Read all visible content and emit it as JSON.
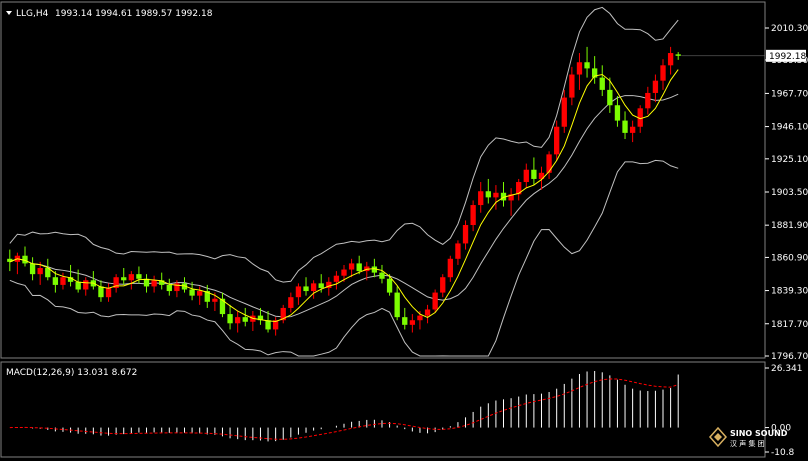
{
  "main_header": {
    "menu_icon": "triangle-down-icon",
    "symbol_tf": "LLG,H4",
    "ohlc": "1993.14 1994.61 1989.57 1992.18"
  },
  "price_axis": {
    "labels": [
      "2010.30",
      "1989.50",
      "1967.70",
      "1946.10",
      "1925.10",
      "1903.50",
      "1881.90",
      "1860.90",
      "1839.30",
      "1817.70",
      "1796.70"
    ],
    "current_price_label": "1992.18"
  },
  "macd_panel": {
    "header": "MACD(12,26,9) 13.031 8.672",
    "axis_labels": [
      "26.341",
      "0.00",
      "-10.8"
    ]
  },
  "watermark": {
    "brand": "SINO SOUND",
    "cn": "汉 声 集 团"
  },
  "colors": {
    "background": "#000000",
    "bull": "#ff0000",
    "bear": "#7cfc00",
    "bands": "#c0c0c0",
    "ma": "#ffff00",
    "signal": "#ff0000",
    "histogram": "#ffffff"
  },
  "chart_data": {
    "type": "candlestick",
    "symbol": "LLG",
    "timeframe": "H4",
    "y_range": [
      1796.7,
      2010.3
    ],
    "candles": [
      [
        1860,
        1866,
        1852,
        1858
      ],
      [
        1858,
        1864,
        1850,
        1862
      ],
      [
        1862,
        1868,
        1855,
        1857
      ],
      [
        1857,
        1861,
        1846,
        1850
      ],
      [
        1850,
        1858,
        1843,
        1854
      ],
      [
        1854,
        1860,
        1846,
        1848
      ],
      [
        1848,
        1852,
        1838,
        1843
      ],
      [
        1843,
        1851,
        1840,
        1848
      ],
      [
        1848,
        1856,
        1842,
        1845
      ],
      [
        1845,
        1853,
        1838,
        1840
      ],
      [
        1840,
        1848,
        1836,
        1846
      ],
      [
        1846,
        1852,
        1840,
        1842
      ],
      [
        1842,
        1846,
        1832,
        1835
      ],
      [
        1835,
        1844,
        1832,
        1841
      ],
      [
        1841,
        1850,
        1838,
        1848
      ],
      [
        1848,
        1854,
        1843,
        1846
      ],
      [
        1846,
        1852,
        1840,
        1850
      ],
      [
        1850,
        1855,
        1844,
        1847
      ],
      [
        1847,
        1850,
        1838,
        1842
      ],
      [
        1842,
        1849,
        1838,
        1846
      ],
      [
        1846,
        1851,
        1840,
        1843
      ],
      [
        1843,
        1847,
        1836,
        1839
      ],
      [
        1839,
        1846,
        1835,
        1844
      ],
      [
        1844,
        1848,
        1838,
        1840
      ],
      [
        1840,
        1845,
        1833,
        1836
      ],
      [
        1836,
        1842,
        1830,
        1839
      ],
      [
        1839,
        1843,
        1828,
        1832
      ],
      [
        1832,
        1838,
        1826,
        1834
      ],
      [
        1834,
        1838,
        1822,
        1824
      ],
      [
        1824,
        1830,
        1814,
        1818
      ],
      [
        1818,
        1826,
        1812,
        1822
      ],
      [
        1822,
        1828,
        1816,
        1819
      ],
      [
        1819,
        1826,
        1813,
        1823
      ],
      [
        1823,
        1828,
        1817,
        1820
      ],
      [
        1820,
        1826,
        1812,
        1814
      ],
      [
        1814,
        1822,
        1810,
        1820
      ],
      [
        1820,
        1830,
        1818,
        1828
      ],
      [
        1828,
        1838,
        1825,
        1835
      ],
      [
        1835,
        1844,
        1830,
        1842
      ],
      [
        1842,
        1848,
        1836,
        1839
      ],
      [
        1839,
        1846,
        1834,
        1844
      ],
      [
        1844,
        1850,
        1838,
        1841
      ],
      [
        1841,
        1848,
        1836,
        1845
      ],
      [
        1845,
        1852,
        1840,
        1849
      ],
      [
        1849,
        1856,
        1845,
        1853
      ],
      [
        1853,
        1860,
        1848,
        1857
      ],
      [
        1857,
        1862,
        1850,
        1852
      ],
      [
        1852,
        1858,
        1846,
        1855
      ],
      [
        1855,
        1860,
        1848,
        1851
      ],
      [
        1851,
        1856,
        1844,
        1847
      ],
      [
        1847,
        1850,
        1836,
        1838
      ],
      [
        1838,
        1842,
        1820,
        1822
      ],
      [
        1822,
        1828,
        1814,
        1817
      ],
      [
        1817,
        1824,
        1812,
        1820
      ],
      [
        1820,
        1826,
        1814,
        1823
      ],
      [
        1823,
        1830,
        1818,
        1827
      ],
      [
        1827,
        1840,
        1825,
        1838
      ],
      [
        1838,
        1850,
        1835,
        1848
      ],
      [
        1848,
        1862,
        1845,
        1860
      ],
      [
        1860,
        1872,
        1856,
        1870
      ],
      [
        1870,
        1885,
        1866,
        1882
      ],
      [
        1882,
        1898,
        1878,
        1895
      ],
      [
        1895,
        1910,
        1890,
        1904
      ],
      [
        1904,
        1912,
        1896,
        1900
      ],
      [
        1900,
        1908,
        1892,
        1903
      ],
      [
        1903,
        1910,
        1894,
        1898
      ],
      [
        1898,
        1906,
        1888,
        1902
      ],
      [
        1902,
        1912,
        1898,
        1910
      ],
      [
        1910,
        1922,
        1906,
        1918
      ],
      [
        1918,
        1926,
        1908,
        1912
      ],
      [
        1912,
        1920,
        1905,
        1916
      ],
      [
        1916,
        1930,
        1912,
        1928
      ],
      [
        1928,
        1950,
        1924,
        1946
      ],
      [
        1946,
        1970,
        1942,
        1965
      ],
      [
        1965,
        1985,
        1960,
        1980
      ],
      [
        1980,
        1994,
        1970,
        1988
      ],
      [
        1988,
        1998,
        1978,
        1984
      ],
      [
        1984,
        1992,
        1974,
        1978
      ],
      [
        1978,
        1986,
        1966,
        1970
      ],
      [
        1970,
        1978,
        1955,
        1960
      ],
      [
        1960,
        1966,
        1946,
        1950
      ],
      [
        1950,
        1956,
        1938,
        1942
      ],
      [
        1942,
        1950,
        1936,
        1946
      ],
      [
        1946,
        1960,
        1942,
        1958
      ],
      [
        1958,
        1972,
        1954,
        1968
      ],
      [
        1968,
        1980,
        1962,
        1976
      ],
      [
        1976,
        1990,
        1970,
        1986
      ],
      [
        1986,
        1998,
        1980,
        1994
      ],
      [
        1993.14,
        1994.61,
        1989.57,
        1992.18
      ]
    ],
    "macd": {
      "name": "MACD(12,26,9)",
      "value": 13.031,
      "signal": 8.672,
      "range": [
        -10.8,
        26.341
      ]
    }
  }
}
